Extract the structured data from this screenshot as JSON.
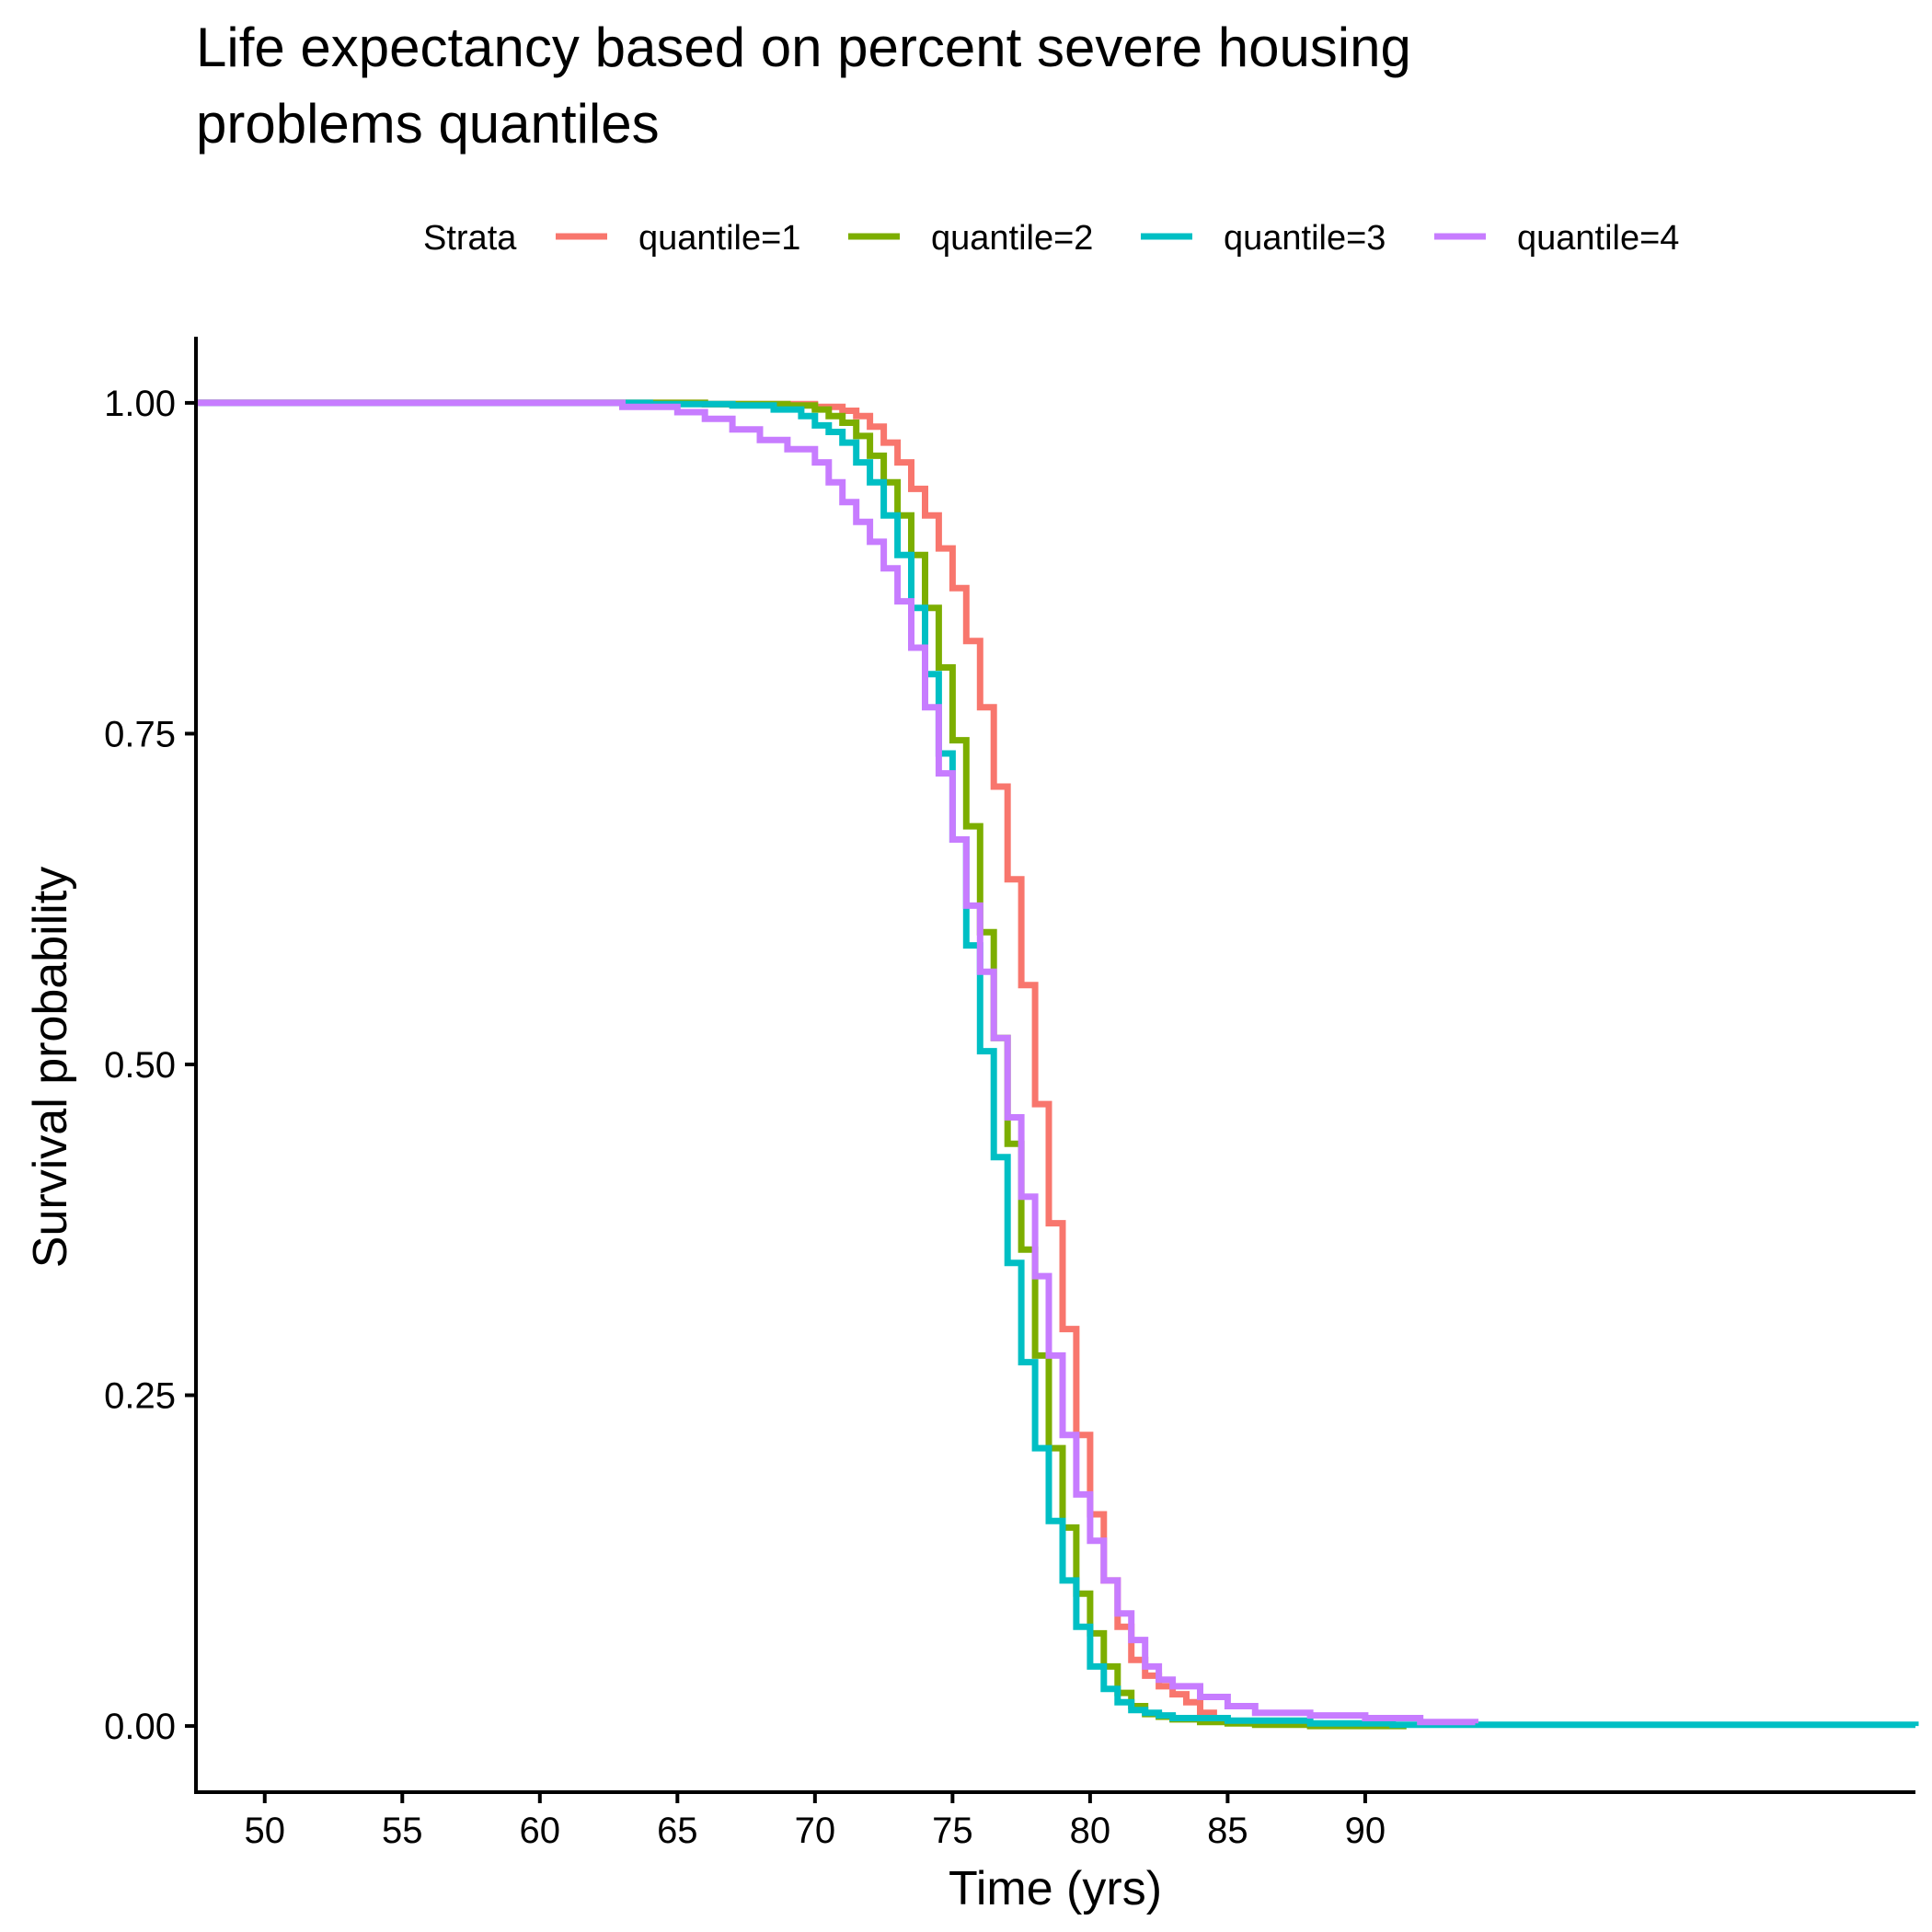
{
  "chart_data": {
    "type": "line",
    "title_lines": [
      "Life expectancy based on percent severe housing",
      "problems quantiles"
    ],
    "xlabel": "Time (yrs)",
    "ylabel": "Survival probability",
    "xlim": [
      47.5,
      110
    ],
    "ylim": [
      -0.05,
      1.05
    ],
    "xticks": [
      50,
      55,
      60,
      65,
      70,
      75,
      80,
      85,
      90
    ],
    "xtick_labels": [
      "50",
      "55",
      "60",
      "65",
      "70",
      "75",
      "80",
      "85",
      "90"
    ],
    "yticks": [
      0,
      0.25,
      0.5,
      0.75,
      1
    ],
    "ytick_labels": [
      "0.00",
      "0.25",
      "0.50",
      "0.75",
      "1.00"
    ],
    "grid": false,
    "legend": {
      "title": "Strata",
      "position": "top"
    },
    "series": [
      {
        "name": "quantile=1",
        "color": "#F8766D",
        "x": [
          47.5,
          62,
          66,
          70,
          71,
          71.5,
          72,
          72.5,
          73,
          73.5,
          74,
          74.5,
          75,
          75.5,
          76,
          76.5,
          77,
          77.5,
          78,
          78.5,
          79,
          79.5,
          80,
          80.5,
          81,
          81.5,
          82,
          82.5,
          83,
          83.5,
          84,
          84.5,
          85
        ],
        "y": [
          1.0,
          1.0,
          0.999,
          0.997,
          0.994,
          0.99,
          0.982,
          0.97,
          0.955,
          0.935,
          0.915,
          0.89,
          0.86,
          0.82,
          0.77,
          0.71,
          0.64,
          0.56,
          0.47,
          0.38,
          0.3,
          0.22,
          0.16,
          0.11,
          0.075,
          0.05,
          0.038,
          0.03,
          0.024,
          0.018,
          0.01,
          0.005,
          0.003
        ]
      },
      {
        "name": "quantile=2",
        "color": "#7CAE00",
        "x": [
          47.5,
          62,
          66,
          69,
          70,
          70.5,
          71,
          71.5,
          72,
          72.5,
          73,
          73.5,
          74,
          74.5,
          75,
          75.5,
          76,
          76.5,
          77,
          77.5,
          78,
          78.5,
          79,
          79.5,
          80,
          80.5,
          81,
          81.5,
          82,
          82.5,
          83,
          84,
          85,
          86,
          88,
          91.5
        ],
        "y": [
          1.0,
          1.0,
          0.999,
          0.998,
          0.995,
          0.99,
          0.985,
          0.975,
          0.96,
          0.94,
          0.915,
          0.885,
          0.845,
          0.8,
          0.745,
          0.68,
          0.6,
          0.52,
          0.44,
          0.36,
          0.28,
          0.21,
          0.15,
          0.1,
          0.07,
          0.045,
          0.025,
          0.015,
          0.009,
          0.007,
          0.005,
          0.003,
          0.002,
          0.001,
          0.0,
          0.0
        ]
      },
      {
        "name": "quantile=3",
        "color": "#00BFC4",
        "x": [
          47.5,
          60,
          64,
          67,
          68.5,
          69.5,
          70,
          70.5,
          71,
          71.5,
          72,
          72.5,
          73,
          73.5,
          74,
          74.5,
          75,
          75.5,
          76,
          76.5,
          77,
          77.5,
          78,
          78.5,
          79,
          79.5,
          80,
          80.5,
          81,
          81.5,
          82,
          82.5,
          83,
          85,
          88,
          91,
          110
        ],
        "y": [
          1.0,
          1.0,
          0.999,
          0.998,
          0.995,
          0.99,
          0.983,
          0.978,
          0.97,
          0.955,
          0.94,
          0.915,
          0.885,
          0.845,
          0.795,
          0.735,
          0.67,
          0.59,
          0.51,
          0.43,
          0.35,
          0.275,
          0.21,
          0.155,
          0.11,
          0.075,
          0.045,
          0.028,
          0.018,
          0.012,
          0.01,
          0.008,
          0.006,
          0.004,
          0.002,
          0.001,
          0.0
        ]
      },
      {
        "name": "quantile=4",
        "color": "#C77CFF",
        "x": [
          47.5,
          60,
          63,
          65,
          66,
          67,
          68,
          69,
          70,
          70.5,
          71,
          71.5,
          72,
          72.5,
          73,
          73.5,
          74,
          74.5,
          75,
          75.5,
          76,
          76.5,
          77,
          77.5,
          78,
          78.5,
          79,
          79.5,
          80,
          80.5,
          81,
          81.5,
          82,
          82.5,
          83,
          84,
          85,
          86,
          88,
          90,
          92,
          94
        ],
        "y": [
          1.0,
          1.0,
          0.997,
          0.993,
          0.988,
          0.98,
          0.972,
          0.965,
          0.955,
          0.94,
          0.925,
          0.91,
          0.895,
          0.875,
          0.85,
          0.815,
          0.77,
          0.72,
          0.67,
          0.62,
          0.57,
          0.52,
          0.46,
          0.4,
          0.34,
          0.28,
          0.22,
          0.175,
          0.14,
          0.11,
          0.085,
          0.065,
          0.045,
          0.035,
          0.03,
          0.022,
          0.015,
          0.01,
          0.008,
          0.006,
          0.003,
          0.002
        ]
      }
    ]
  }
}
